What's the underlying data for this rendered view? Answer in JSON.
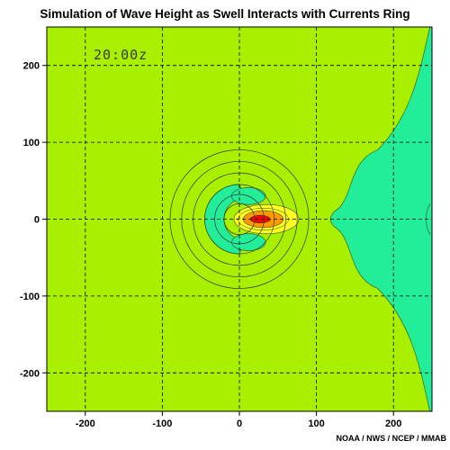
{
  "chart_data": {
    "type": "heatmap",
    "title": "Simulation of Wave Height as Swell Interacts with Currents Ring",
    "timestamp": "20:00z",
    "credit": "NOAA / NWS / NCEP / MMAB",
    "xlim": [
      -250,
      250
    ],
    "ylim": [
      -250,
      250
    ],
    "xticks": [
      -200,
      -100,
      0,
      100,
      200
    ],
    "yticks": [
      -200,
      -100,
      0,
      100,
      200
    ],
    "grid": true,
    "grid_style": "dashed",
    "current_ring": {
      "center": [
        0,
        0
      ],
      "radii": [
        90,
        75,
        60,
        45,
        32,
        20
      ]
    },
    "fields": [
      {
        "name": "background",
        "color": "#a8f000"
      },
      {
        "name": "low",
        "color": "#22ee99"
      },
      {
        "name": "moderate",
        "color": "#ffff22"
      },
      {
        "name": "high",
        "color": "#ff9900"
      },
      {
        "name": "peak",
        "color": "#ff0000"
      }
    ],
    "features": [
      {
        "shape": "crescent-low",
        "center": [
          0,
          0
        ],
        "outer_radius": 45,
        "inner_radius": 27,
        "shift": [
          7,
          0
        ]
      },
      {
        "shape": "lobe-low",
        "center": [
          12,
          30
        ],
        "rx": 22,
        "ry": 11
      },
      {
        "shape": "lobe-low",
        "center": [
          12,
          -30
        ],
        "rx": 22,
        "ry": 11
      },
      {
        "shape": "ellipse-moderate",
        "center": [
          35,
          0
        ],
        "rx": 42,
        "ry": 19
      },
      {
        "shape": "ellipse-high",
        "center": [
          31,
          0
        ],
        "rx": 26,
        "ry": 11
      },
      {
        "shape": "ellipse-peak",
        "center": [
          27,
          0
        ],
        "rx": 13,
        "ry": 5
      },
      {
        "shape": "shadow-zone-low",
        "x_start": 128,
        "x_end": 250,
        "y_range": [
          -250,
          250
        ]
      }
    ]
  }
}
